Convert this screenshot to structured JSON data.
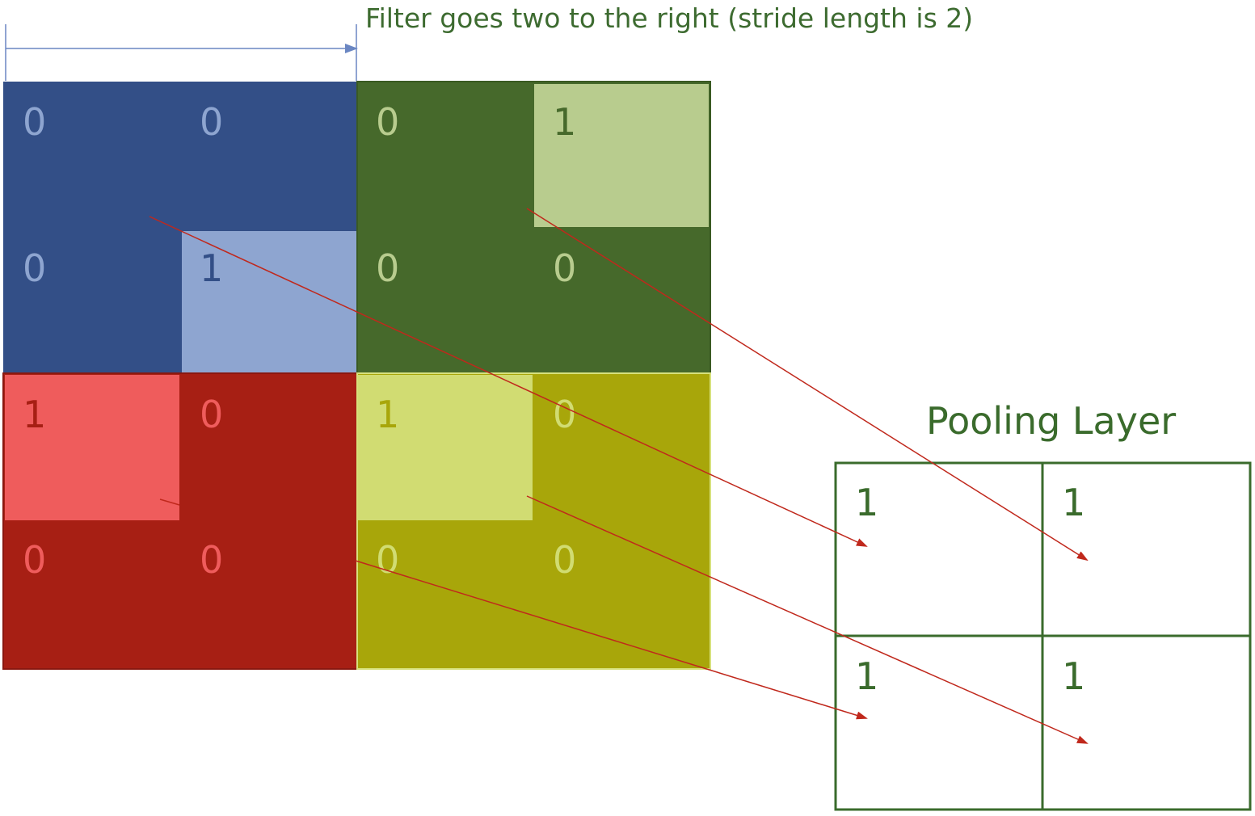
{
  "stride_caption": "Filter goes two to the right (stride length is 2)",
  "pool_title": "Pooling Layer",
  "colors": {
    "blue_dark": "#334f87",
    "blue_light": "#8ea5d0",
    "green_dark": "#46692b",
    "green_light": "#b8cc8e",
    "red_dark": "#a71f14",
    "red_light": "#ef5c5c",
    "olive_dark": "#a8a60a",
    "olive_light": "#d1dc72",
    "arrow": "#c0281c",
    "stride_arrow": "#6a86c2"
  },
  "input_grid": {
    "blue": {
      "values": [
        "0",
        "0",
        "0",
        "1"
      ],
      "max": "1"
    },
    "green": {
      "values": [
        "0",
        "1",
        "0",
        "0"
      ],
      "max": "1"
    },
    "red": {
      "values": [
        "1",
        "0",
        "0",
        "0"
      ],
      "max": "1"
    },
    "olive": {
      "values": [
        "1",
        "0",
        "0",
        "0"
      ],
      "max": "1"
    }
  },
  "pool_grid": {
    "values": [
      "1",
      "1",
      "1",
      "1"
    ]
  }
}
